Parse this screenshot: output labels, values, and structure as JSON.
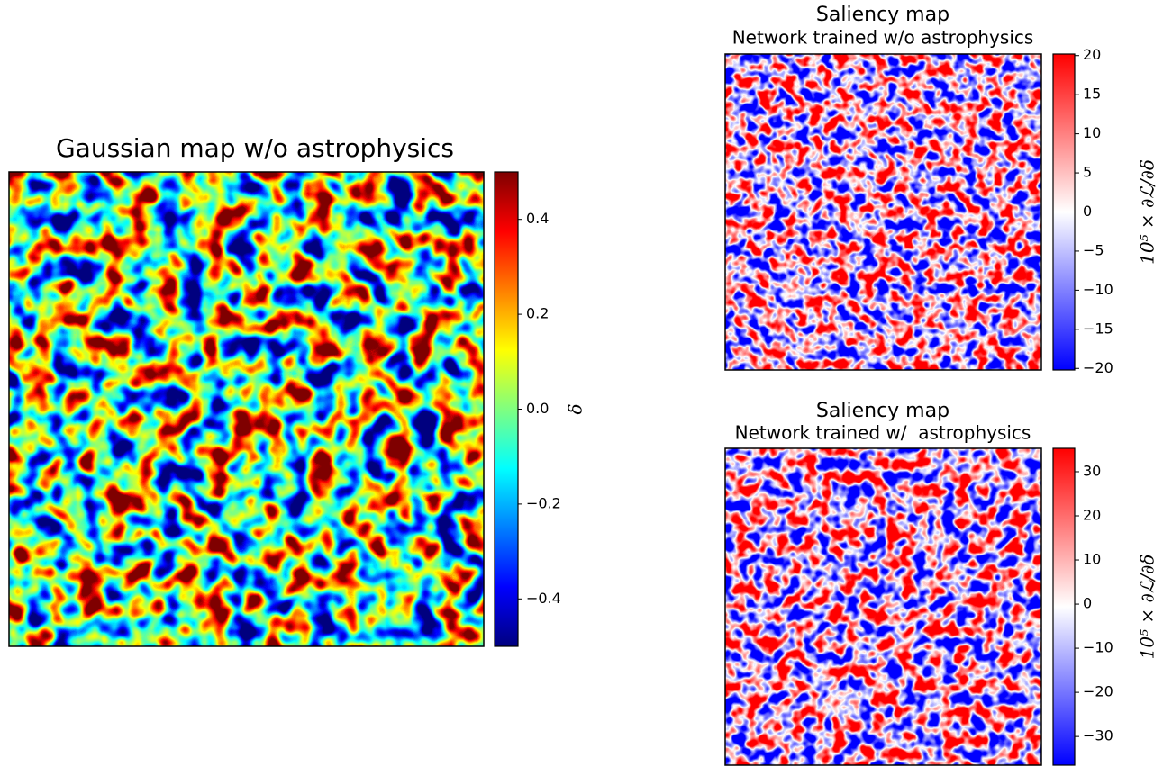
{
  "chart_data": [
    {
      "type": "heatmap",
      "title": "Gaussian map w/o astrophysics",
      "colormap": "jet",
      "colorbar": {
        "label": "δ",
        "lim": [
          -0.5,
          0.5
        ],
        "ticks": [
          {
            "value": -0.4,
            "label": "−0.4"
          },
          {
            "value": -0.2,
            "label": "−0.2"
          },
          {
            "value": 0,
            "label": "0.0"
          },
          0.2,
          0.4
        ]
      }
    },
    {
      "type": "heatmap",
      "title": "Saliency map",
      "subtitle": "Network trained w/o astrophysics",
      "colormap": "bwr",
      "colorbar": {
        "label": "10⁵ × ∂ℒ/∂δ",
        "lim": [
          -20.2,
          20.2
        ],
        "ticks": [
          {
            "value": -20,
            "label": "−20"
          },
          {
            "value": -15,
            "label": "−15"
          },
          {
            "value": -10,
            "label": "−10"
          },
          {
            "value": -5,
            "label": "−5"
          },
          0,
          5,
          10,
          15,
          20
        ]
      }
    },
    {
      "type": "heatmap",
      "title": "Saliency map",
      "subtitle": "Network trained w/  astrophysics",
      "colormap": "bwr",
      "colorbar": {
        "label": "10⁵ × ∂ℒ/∂δ",
        "lim": [
          -36.5,
          35.3
        ],
        "ticks": [
          {
            "value": -30,
            "label": "−30"
          },
          {
            "value": -20,
            "label": "−20"
          },
          {
            "value": -10,
            "label": "−10"
          },
          0,
          10,
          20,
          30
        ]
      }
    }
  ]
}
